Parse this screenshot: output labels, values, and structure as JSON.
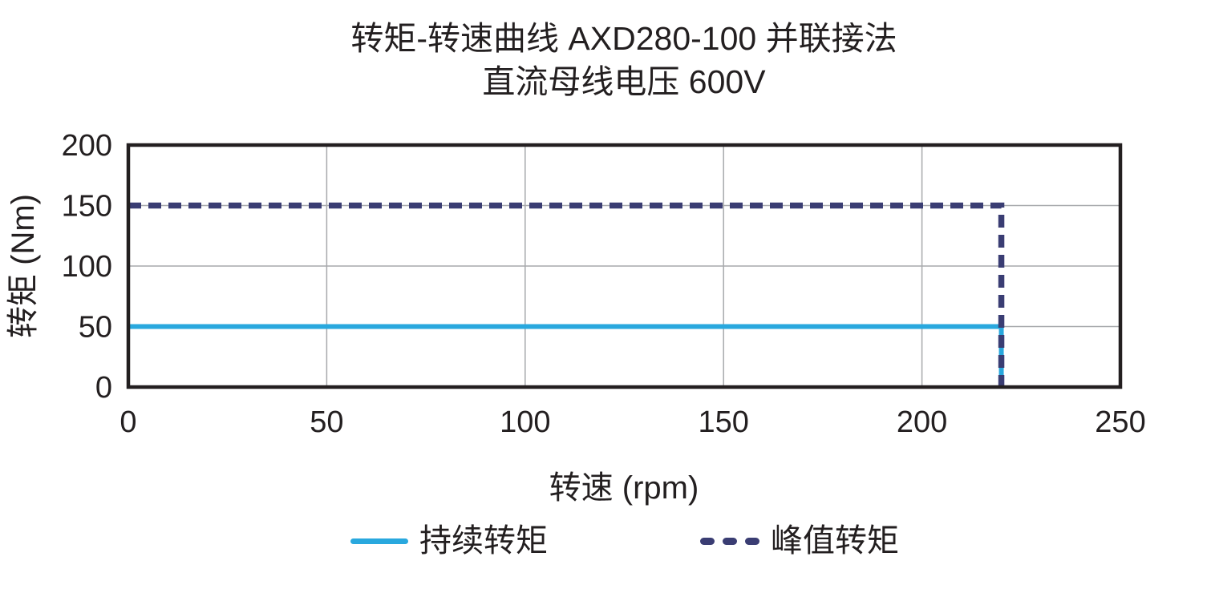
{
  "chart_data": {
    "type": "line",
    "title": "转矩-转速曲线 AXD280-100 并联接法",
    "subtitle": "直流母线电压 600V",
    "xlabel": "转速 (rpm)",
    "ylabel": "转矩 (Nm)",
    "xlim": [
      0,
      250
    ],
    "ylim": [
      0,
      200
    ],
    "xticks": [
      0,
      50,
      100,
      150,
      200,
      250
    ],
    "yticks": [
      0,
      50,
      100,
      150,
      200
    ],
    "grid": true,
    "legend_position": "bottom",
    "series": [
      {
        "name": "持续转矩",
        "style": "solid",
        "color": "#29A8DE",
        "width": 6,
        "points": [
          [
            0,
            50
          ],
          [
            220,
            50
          ],
          [
            220,
            0
          ]
        ]
      },
      {
        "name": "峰值转矩",
        "style": "dashed",
        "color": "#3A3D73",
        "width": 7.5,
        "points": [
          [
            0,
            150
          ],
          [
            220,
            150
          ],
          [
            220,
            0
          ]
        ]
      }
    ],
    "colors": {
      "border": "#231F20",
      "gridline": "#A7A9AC",
      "text": "#231F20",
      "background": "#FFFFFF"
    }
  }
}
